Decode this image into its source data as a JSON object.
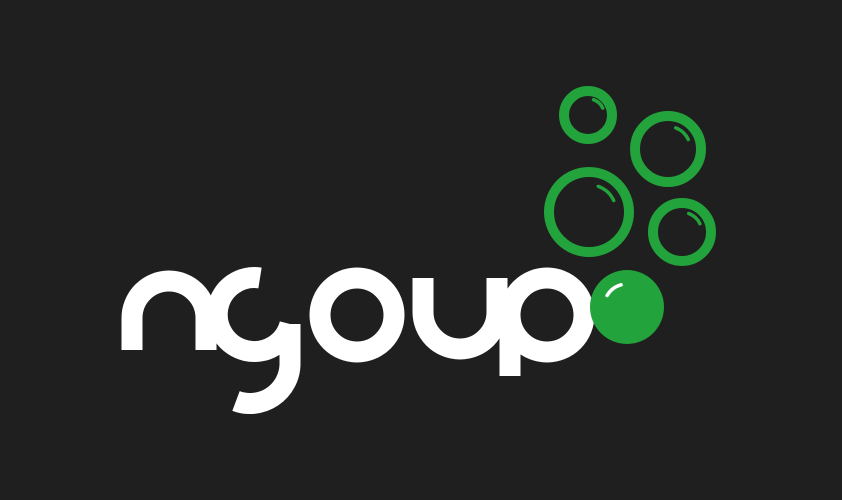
{
  "logo": {
    "wordmark": "ngoup",
    "colors": {
      "background": "#1f1f1f",
      "text": "#ffffff",
      "accent": "#22a33b",
      "shine": "#ffffff"
    },
    "icons": [
      "bubble-cluster-icon"
    ]
  }
}
